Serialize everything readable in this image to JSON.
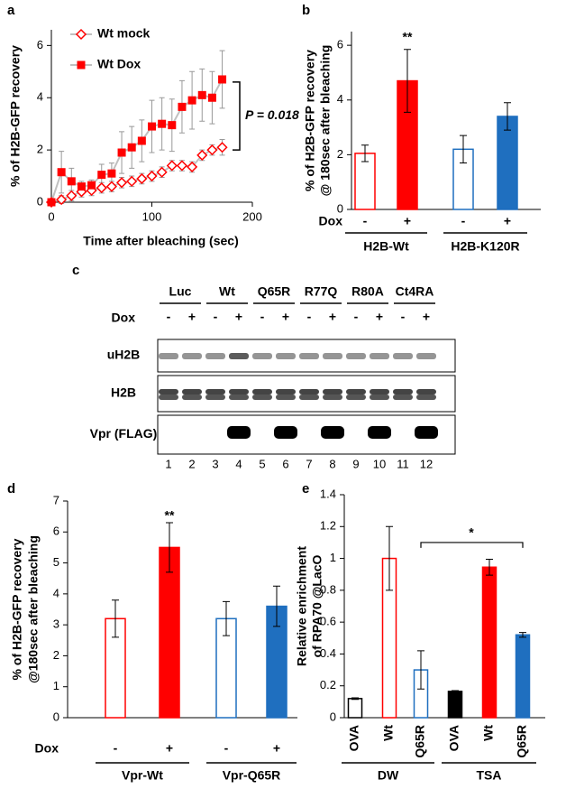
{
  "chart_data": [
    {
      "type": "line",
      "panel_label": "a",
      "xlabel": "Time after bleaching (sec)",
      "ylabel": [
        "% of H2B-GFP recovery"
      ],
      "x": [
        0,
        10,
        20,
        30,
        40,
        50,
        60,
        70,
        80,
        90,
        100,
        110,
        120,
        130,
        140,
        150,
        160,
        170
      ],
      "xlim": [
        0,
        200
      ],
      "xticks": [
        0,
        100,
        200
      ],
      "ylim": [
        0,
        6.6
      ],
      "yticks": [
        0,
        2,
        4,
        6
      ],
      "line_color": "#c0c0c0",
      "series": [
        {
          "name": "Wt mock",
          "color": "#ff0000",
          "marker": "diamond-open",
          "values": [
            0,
            0.1,
            0.25,
            0.4,
            0.45,
            0.55,
            0.6,
            0.75,
            0.8,
            0.9,
            1.0,
            1.15,
            1.4,
            1.4,
            1.35,
            1.8,
            2.0,
            2.1
          ],
          "errors": [
            0,
            0.15,
            0.2,
            0.2,
            0.2,
            0.2,
            0.2,
            0.2,
            0.2,
            0.2,
            0.2,
            0.2,
            0.2,
            0.2,
            0.2,
            0.2,
            0.2,
            0.3
          ]
        },
        {
          "name": "Wt Dox",
          "color": "#ff0000",
          "marker": "square",
          "values": [
            0,
            1.15,
            0.8,
            0.6,
            0.65,
            1.05,
            1.1,
            1.9,
            2.1,
            2.35,
            2.9,
            3.0,
            2.95,
            3.65,
            3.9,
            4.1,
            4.0,
            4.7
          ],
          "errors": [
            0,
            0.8,
            0.5,
            0.2,
            0.2,
            0.4,
            0.4,
            0.8,
            0.8,
            0.8,
            1.0,
            1.0,
            1.0,
            1.0,
            1.1,
            1.0,
            1.0,
            1.1
          ]
        }
      ],
      "annotation": "P = 0.018"
    },
    {
      "type": "bar",
      "panel_label": "b",
      "ylabel": [
        "% of H2B-GFP recovery",
        "@ 180sec after bleaching"
      ],
      "row_label": "Dox",
      "categories": [
        "-",
        "+",
        "-",
        "+"
      ],
      "groups": [
        "H2B-Wt",
        "H2B-K120R"
      ],
      "values": [
        2.05,
        4.7,
        2.2,
        3.4
      ],
      "errors": [
        0.3,
        1.15,
        0.5,
        0.5
      ],
      "colors": [
        "#ff0000",
        "#ff0000",
        "#1f6fbf",
        "#1f6fbf"
      ],
      "filled": [
        false,
        true,
        false,
        true
      ],
      "ylim": [
        0,
        6.5
      ],
      "yticks": [
        0,
        2,
        4,
        6
      ],
      "annotation": "**"
    },
    {
      "type": "bar",
      "panel_label": "d",
      "ylabel": [
        "% of H2B-GFP recovery",
        "@180sec after bleaching"
      ],
      "row_label": "Dox",
      "categories": [
        "-",
        "+",
        "-",
        "+"
      ],
      "groups": [
        "Vpr-Wt",
        "Vpr-Q65R"
      ],
      "values": [
        3.2,
        5.5,
        3.2,
        3.6
      ],
      "errors": [
        0.6,
        0.8,
        0.55,
        0.65
      ],
      "colors": [
        "#ff0000",
        "#ff0000",
        "#1f6fbf",
        "#1f6fbf"
      ],
      "filled": [
        false,
        true,
        false,
        true
      ],
      "ylim": [
        0,
        7
      ],
      "yticks": [
        0,
        1,
        2,
        3,
        4,
        5,
        6,
        7
      ],
      "annotation": "**"
    },
    {
      "type": "bar",
      "panel_label": "e",
      "ylabel": [
        "Relative enrichment",
        "of RPA70 @LacO"
      ],
      "categories": [
        "OVA",
        "Wt",
        "Q65R",
        "OVA",
        "Wt",
        "Q65R"
      ],
      "groups": [
        "DW",
        "TSA"
      ],
      "values": [
        0.12,
        1.0,
        0.3,
        0.165,
        0.945,
        0.52
      ],
      "errors": [
        0.005,
        0.2,
        0.12,
        0.005,
        0.05,
        0.015
      ],
      "colors": [
        "#000000",
        "#ff0000",
        "#1f6fbf",
        "#000000",
        "#ff0000",
        "#1f6fbf"
      ],
      "filled": [
        false,
        false,
        false,
        true,
        true,
        true
      ],
      "ylim": [
        0,
        1.4
      ],
      "yticks": [
        0,
        0.2,
        0.4,
        0.6,
        0.8,
        1,
        1.2,
        1.4
      ],
      "annotation": "*"
    }
  ],
  "blot": {
    "panel_label": "c",
    "groups": [
      "Luc",
      "Wt",
      "Q65R",
      "R77Q",
      "R80A",
      "Ct4RA"
    ],
    "treatment_label": "Dox",
    "treatment": [
      "-",
      "+",
      "-",
      "+",
      "-",
      "+",
      "-",
      "+",
      "-",
      "+",
      "-",
      "+"
    ],
    "rows": [
      "uH2B",
      "H2B",
      "Vpr (FLAG)"
    ],
    "lanes": [
      1,
      2,
      3,
      4,
      5,
      6,
      7,
      8,
      9,
      10,
      11,
      12
    ]
  }
}
